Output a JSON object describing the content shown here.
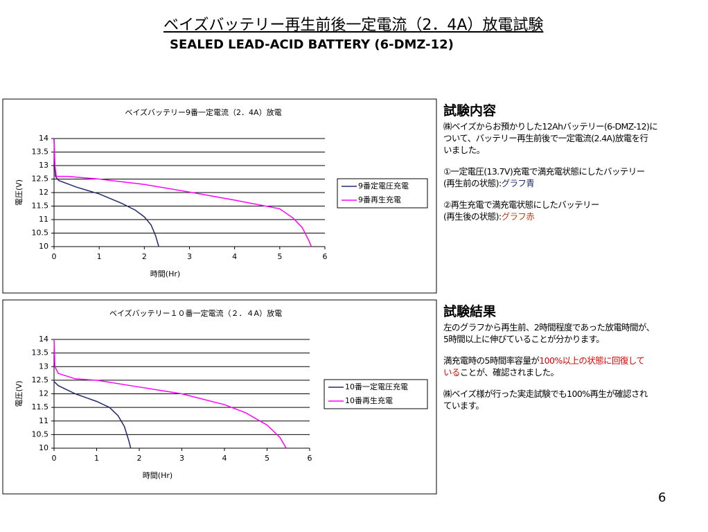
{
  "title": "ベイズバッテリー再生前後一定電流（2．4A）放電試験",
  "subtitle": "SEALED LEAD-ACID BATTERY (6-DMZ-12)",
  "chart_data": [
    {
      "type": "line",
      "title": "ベイズバッテリー9番一定電流（2．4A）放電",
      "xlabel": "時間(Hr)",
      "ylabel": "電圧(V)",
      "xlim": [
        0,
        6
      ],
      "xticks": [
        0,
        1,
        2,
        3,
        4,
        5,
        6
      ],
      "ylim": [
        10,
        14
      ],
      "yticks": [
        10,
        10.5,
        11,
        11.5,
        12,
        12.5,
        13,
        13.5,
        14
      ],
      "grid": true,
      "legend": "right",
      "series": [
        {
          "name": "9番定電圧充電",
          "color": "#1f2a6e",
          "x": [
            0,
            0.01,
            0.03,
            0.1,
            0.5,
            1,
            1.5,
            1.8,
            2,
            2.15,
            2.25,
            2.32
          ],
          "values": [
            14,
            13.2,
            12.6,
            12.45,
            12.2,
            11.95,
            11.6,
            11.35,
            11.1,
            10.8,
            10.4,
            10
          ]
        },
        {
          "name": "9番再生充電",
          "color": "#ff00ff",
          "x": [
            0,
            0.02,
            0.05,
            0.3,
            1,
            2,
            3,
            4,
            5,
            5.3,
            5.5,
            5.65,
            5.7
          ],
          "values": [
            14,
            13,
            12.6,
            12.6,
            12.5,
            12.3,
            12.02,
            11.72,
            11.4,
            11.05,
            10.7,
            10.2,
            10
          ]
        }
      ]
    },
    {
      "type": "line",
      "title": "ベイズバッテリー１０番一定電流（２．４A）放電",
      "xlabel": "時間(Hr)",
      "ylabel": "電圧(V)",
      "xlim": [
        0,
        6
      ],
      "xticks": [
        0,
        1,
        2,
        3,
        4,
        5,
        6
      ],
      "ylim": [
        10,
        14
      ],
      "yticks": [
        10,
        10.5,
        11,
        11.5,
        12,
        12.5,
        13,
        13.5,
        14
      ],
      "grid": true,
      "legend": "right",
      "series": [
        {
          "name": "10番一定電圧充電",
          "color": "#1f2a6e",
          "x": [
            0,
            0.1,
            0.5,
            1,
            1.3,
            1.5,
            1.65,
            1.75,
            1.8
          ],
          "values": [
            12.45,
            12.3,
            12,
            11.72,
            11.5,
            11.2,
            10.8,
            10.3,
            10
          ]
        },
        {
          "name": "10番再生充電",
          "color": "#ff00ff",
          "x": [
            0,
            0.02,
            0.1,
            0.5,
            1,
            2,
            3,
            4,
            4.5,
            5,
            5.3,
            5.45
          ],
          "values": [
            14,
            13,
            12.75,
            12.55,
            12.5,
            12.25,
            12,
            11.6,
            11.3,
            10.85,
            10.4,
            10
          ]
        }
      ]
    }
  ],
  "sections": [
    {
      "heading": "試験内容",
      "paragraphs": [
        [
          [
            "㈱ベイズからお預かりした12Ahバッテリー(6-DMZ-12)に"
          ],
          [
            "ついて、バッテリー再生前後で一定電流(2.4A)放電を行"
          ],
          [
            "いました。"
          ]
        ],
        [
          [
            "①一定電圧(13.7V)充電で満充電状態にしたバッテリー"
          ],
          [
            "(再生前の状態):",
            {
              "text": "グラフ青",
              "color": "#1f2a6e"
            }
          ]
        ],
        [
          [
            "②再生充電で満充電状態にしたバッテリー"
          ],
          [
            "(再生後の状態):",
            {
              "text": "グラフ赤",
              "color": "#c04010"
            }
          ]
        ]
      ]
    },
    {
      "heading": "試験結果",
      "paragraphs": [
        [
          [
            "左のグラフから再生前、2時間程度であった放電時間が、"
          ],
          [
            "5時間以上に伸びていることが分かります。"
          ]
        ],
        [
          [
            "満充電時の5時間率容量が",
            {
              "text": "100%以上の状態に回復して",
              "color": "#e00000"
            }
          ],
          [
            {
              "text": "いる",
              "color": "#e00000"
            },
            "ことが、確認されました。"
          ]
        ],
        [
          [
            "㈱ベイズ様が行った実走試験でも100%再生が確認され"
          ],
          [
            "ています。"
          ]
        ]
      ]
    }
  ],
  "page_number": "6"
}
